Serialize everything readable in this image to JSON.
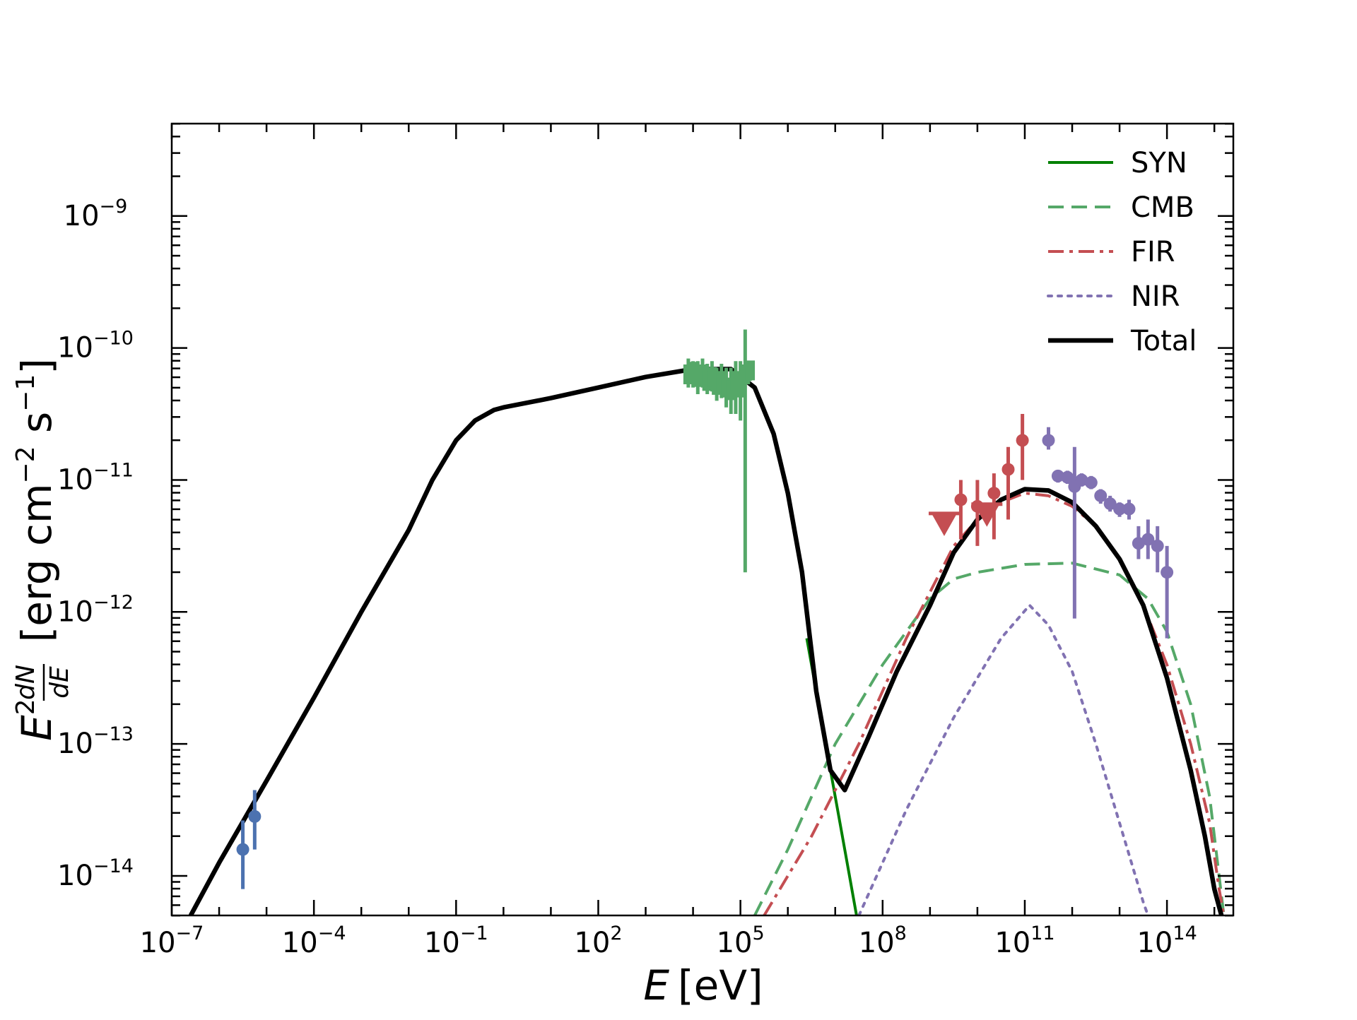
{
  "chart_data": {
    "type": "line",
    "title": "",
    "xlabel": "E [eV]",
    "xlabel_var": "E",
    "xlabel_unit": "[eV]",
    "ylabel": "E^2 dN/dE [erg cm^-2 s^-1]",
    "ylabel_var": "E",
    "ylabel_sup": "2",
    "ylabel_num": "dN",
    "ylabel_den": "dE",
    "ylabel_unit_parts": [
      "[erg cm",
      "−2",
      " s",
      "−1",
      "]"
    ],
    "xscale": "log",
    "yscale": "log",
    "xlim_log10": [
      -7,
      15.4
    ],
    "ylim_log10": [
      -14.3,
      -8.3
    ],
    "x_ticks": [
      {
        "exp": -7,
        "label": "10",
        "sup": "−7"
      },
      {
        "exp": -4,
        "label": "10",
        "sup": "−4"
      },
      {
        "exp": -1,
        "label": "10",
        "sup": "−1"
      },
      {
        "exp": 2,
        "label": "10",
        "sup": "2"
      },
      {
        "exp": 5,
        "label": "10",
        "sup": "5"
      },
      {
        "exp": 8,
        "label": "10",
        "sup": "8"
      },
      {
        "exp": 11,
        "label": "10",
        "sup": "11"
      },
      {
        "exp": 14,
        "label": "10",
        "sup": "14"
      }
    ],
    "y_ticks": [
      {
        "exp": -14,
        "label": "10",
        "sup": "−14"
      },
      {
        "exp": -13,
        "label": "10",
        "sup": "−13"
      },
      {
        "exp": -12,
        "label": "10",
        "sup": "−12"
      },
      {
        "exp": -11,
        "label": "10",
        "sup": "−11"
      },
      {
        "exp": -10,
        "label": "10",
        "sup": "−10"
      },
      {
        "exp": -9,
        "label": "10",
        "sup": "−9"
      }
    ],
    "legend": {
      "placement": "top-right",
      "entries": [
        {
          "name": "SYN",
          "color": "#008000",
          "style": "solid"
        },
        {
          "name": "CMB",
          "color": "#55a868",
          "style": "dashed"
        },
        {
          "name": "FIR",
          "color": "#c44e52",
          "style": "dashdot"
        },
        {
          "name": "NIR",
          "color": "#8172b2",
          "style": "dotted"
        },
        {
          "name": "Total",
          "color": "#000000",
          "style": "solid"
        }
      ]
    },
    "series": [
      {
        "name": "SYN",
        "color": "#008000",
        "style": "solid",
        "width": 4,
        "points": [
          [
            6.4,
            -12.2
          ],
          [
            6.8,
            -13.0
          ],
          [
            7.1,
            -13.6
          ],
          [
            7.3,
            -14.0
          ],
          [
            7.45,
            -14.3
          ]
        ]
      },
      {
        "name": "CMB",
        "color": "#55a868",
        "style": "dashed",
        "width": 4,
        "points": [
          [
            5.3,
            -14.3
          ],
          [
            6.0,
            -13.8
          ],
          [
            7.0,
            -13.0
          ],
          [
            8.0,
            -12.4
          ],
          [
            9.0,
            -11.9
          ],
          [
            9.5,
            -11.75
          ],
          [
            10.0,
            -11.7
          ],
          [
            11.0,
            -11.64
          ],
          [
            12.0,
            -11.63
          ],
          [
            13.0,
            -11.72
          ],
          [
            13.6,
            -11.9
          ],
          [
            14.0,
            -12.15
          ],
          [
            14.5,
            -12.7
          ],
          [
            14.9,
            -13.4
          ],
          [
            15.1,
            -14.0
          ],
          [
            15.2,
            -14.3
          ]
        ]
      },
      {
        "name": "FIR",
        "color": "#c44e52",
        "style": "dashdot",
        "width": 4,
        "points": [
          [
            5.5,
            -14.3
          ],
          [
            6.5,
            -13.7
          ],
          [
            7.5,
            -13.0
          ],
          [
            8.5,
            -12.2
          ],
          [
            9.5,
            -11.5
          ],
          [
            10.0,
            -11.3
          ],
          [
            10.5,
            -11.17
          ],
          [
            11.0,
            -11.1
          ],
          [
            11.5,
            -11.12
          ],
          [
            12.0,
            -11.2
          ],
          [
            12.5,
            -11.35
          ],
          [
            13.0,
            -11.6
          ],
          [
            13.5,
            -11.95
          ],
          [
            14.0,
            -12.4
          ],
          [
            14.5,
            -13.0
          ],
          [
            14.9,
            -13.6
          ],
          [
            15.1,
            -14.1
          ],
          [
            15.2,
            -14.3
          ]
        ]
      },
      {
        "name": "NIR",
        "color": "#8172b2",
        "style": "dotted",
        "width": 4,
        "points": [
          [
            7.5,
            -14.3
          ],
          [
            8.5,
            -13.5
          ],
          [
            9.5,
            -12.8
          ],
          [
            10.5,
            -12.2
          ],
          [
            11.1,
            -11.95
          ],
          [
            11.5,
            -12.1
          ],
          [
            12.0,
            -12.45
          ],
          [
            12.5,
            -13.0
          ],
          [
            13.0,
            -13.6
          ],
          [
            13.5,
            -14.2
          ],
          [
            13.6,
            -14.3
          ]
        ]
      },
      {
        "name": "Total",
        "color": "#000000",
        "style": "solid",
        "width": 6.5,
        "points": [
          [
            -6.6,
            -14.3
          ],
          [
            -6.0,
            -13.9
          ],
          [
            -5.0,
            -13.28
          ],
          [
            -4.0,
            -12.65
          ],
          [
            -3.0,
            -12.0
          ],
          [
            -2.0,
            -11.38
          ],
          [
            -1.5,
            -11.0
          ],
          [
            -1.0,
            -10.7
          ],
          [
            -0.6,
            -10.55
          ],
          [
            -0.2,
            -10.47
          ],
          [
            0.0,
            -10.45
          ],
          [
            1.0,
            -10.38
          ],
          [
            2.0,
            -10.3
          ],
          [
            3.0,
            -10.22
          ],
          [
            4.0,
            -10.16
          ],
          [
            4.8,
            -10.16
          ],
          [
            5.3,
            -10.3
          ],
          [
            5.7,
            -10.65
          ],
          [
            6.0,
            -11.1
          ],
          [
            6.3,
            -11.7
          ],
          [
            6.6,
            -12.6
          ],
          [
            6.9,
            -13.2
          ],
          [
            7.2,
            -13.35
          ],
          [
            7.7,
            -12.95
          ],
          [
            8.3,
            -12.45
          ],
          [
            9.0,
            -11.95
          ],
          [
            9.5,
            -11.55
          ],
          [
            10.0,
            -11.3
          ],
          [
            10.5,
            -11.15
          ],
          [
            11.0,
            -11.07
          ],
          [
            11.5,
            -11.08
          ],
          [
            12.0,
            -11.17
          ],
          [
            12.5,
            -11.35
          ],
          [
            13.0,
            -11.6
          ],
          [
            13.5,
            -11.95
          ],
          [
            14.0,
            -12.5
          ],
          [
            14.5,
            -13.2
          ],
          [
            14.8,
            -13.7
          ],
          [
            15.0,
            -14.1
          ],
          [
            15.15,
            -14.3
          ]
        ]
      }
    ],
    "data_points": [
      {
        "group": "radio",
        "color": "#4c72b0",
        "marker": "circle",
        "points": [
          [
            -5.5,
            -13.8,
            -14.1,
            -13.58
          ],
          [
            -5.25,
            -13.55,
            -13.8,
            -13.35
          ]
        ]
      },
      {
        "group": "x-ray",
        "color": "#55a868",
        "marker": "bar",
        "points": [
          [
            3.9,
            -10.2,
            -10.3,
            -10.08
          ],
          [
            4.0,
            -10.18,
            -10.3,
            -10.1
          ],
          [
            4.1,
            -10.22,
            -10.35,
            -10.1
          ],
          [
            4.2,
            -10.2,
            -10.3,
            -10.08
          ],
          [
            4.3,
            -10.25,
            -10.35,
            -10.12
          ],
          [
            4.4,
            -10.22,
            -10.33,
            -10.1
          ],
          [
            4.5,
            -10.28,
            -10.4,
            -10.15
          ],
          [
            4.6,
            -10.25,
            -10.38,
            -10.12
          ],
          [
            4.7,
            -10.3,
            -10.45,
            -10.15
          ],
          [
            4.8,
            -10.32,
            -10.5,
            -10.15
          ],
          [
            4.9,
            -10.25,
            -10.5,
            -10.1
          ],
          [
            5.0,
            -10.3,
            -10.55,
            -10.1
          ],
          [
            5.1,
            -10.2,
            -11.7,
            -9.86
          ],
          [
            5.2,
            -10.17,
            -10.25,
            -10.1
          ]
        ]
      },
      {
        "group": "fermi",
        "color": "#c44e52",
        "marker": "circle",
        "points": [
          [
            9.65,
            -11.15,
            -11.45,
            -11.0
          ],
          [
            10.0,
            -11.2,
            -11.5,
            -11.0
          ],
          [
            10.35,
            -11.1,
            -11.45,
            -10.95
          ],
          [
            10.65,
            -10.92,
            -11.3,
            -10.75
          ],
          [
            10.95,
            -10.7,
            -11.0,
            -10.5
          ]
        ],
        "upper_limits": [
          [
            9.3,
            -11.35
          ],
          [
            10.2,
            -11.28
          ]
        ]
      },
      {
        "group": "tev",
        "color": "#8172b2",
        "marker": "circle",
        "points": [
          [
            11.5,
            -10.7,
            -10.77,
            -10.6
          ],
          [
            11.7,
            -10.97,
            -11.02,
            -10.93
          ],
          [
            11.9,
            -10.98,
            -11.03,
            -10.93
          ],
          [
            12.05,
            -11.05,
            -12.05,
            -10.75
          ],
          [
            12.2,
            -11.0,
            -11.05,
            -10.95
          ],
          [
            12.4,
            -11.02,
            -11.07,
            -10.97
          ],
          [
            12.6,
            -11.12,
            -11.18,
            -11.07
          ],
          [
            12.8,
            -11.18,
            -11.24,
            -11.12
          ],
          [
            13.0,
            -11.22,
            -11.28,
            -11.17
          ],
          [
            13.2,
            -11.22,
            -11.3,
            -11.15
          ],
          [
            13.4,
            -11.48,
            -11.6,
            -11.35
          ],
          [
            13.6,
            -11.45,
            -11.6,
            -11.3
          ],
          [
            13.8,
            -11.5,
            -11.7,
            -11.35
          ],
          [
            14.0,
            -11.7,
            -12.2,
            -11.5
          ]
        ]
      }
    ]
  }
}
